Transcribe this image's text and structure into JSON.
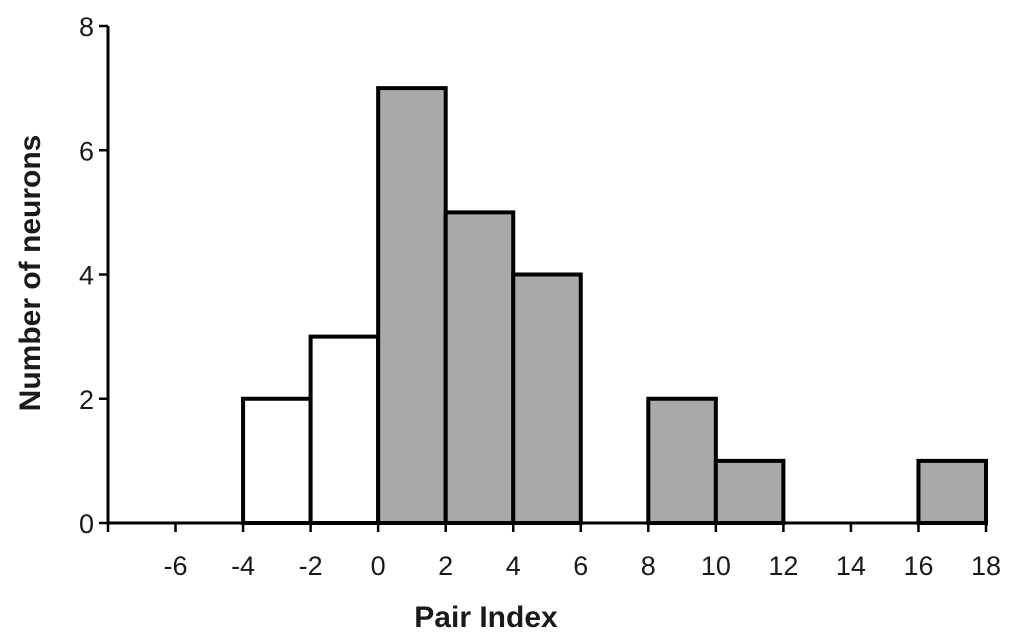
{
  "chart_data": {
    "type": "bar",
    "title": "",
    "xlabel": "Pair Index",
    "ylabel": "Number of neurons",
    "xlim": [
      -8,
      18
    ],
    "ylim": [
      0,
      8
    ],
    "xticks": [
      -6,
      -4,
      -2,
      0,
      2,
      4,
      6,
      8,
      10,
      12,
      14,
      16,
      18
    ],
    "yticks": [
      0,
      2,
      4,
      6,
      8
    ],
    "grid": false,
    "bin_width": 2,
    "bins": [
      {
        "x0": -4,
        "x1": -2,
        "count": 2,
        "fill": "#ffffff"
      },
      {
        "x0": -2,
        "x1": 0,
        "count": 3,
        "fill": "#ffffff"
      },
      {
        "x0": 0,
        "x1": 2,
        "count": 7,
        "fill": "#a9a9a9"
      },
      {
        "x0": 2,
        "x1": 4,
        "count": 5,
        "fill": "#a9a9a9"
      },
      {
        "x0": 4,
        "x1": 6,
        "count": 4,
        "fill": "#a9a9a9"
      },
      {
        "x0": 8,
        "x1": 10,
        "count": 2,
        "fill": "#a9a9a9"
      },
      {
        "x0": 10,
        "x1": 12,
        "count": 1,
        "fill": "#a9a9a9"
      },
      {
        "x0": 16,
        "x1": 18,
        "count": 1,
        "fill": "#a9a9a9"
      }
    ]
  },
  "colors": {
    "axis": "#000000",
    "bar_stroke": "#000000",
    "positive_fill": "#a9a9a9",
    "negative_fill": "#ffffff"
  }
}
